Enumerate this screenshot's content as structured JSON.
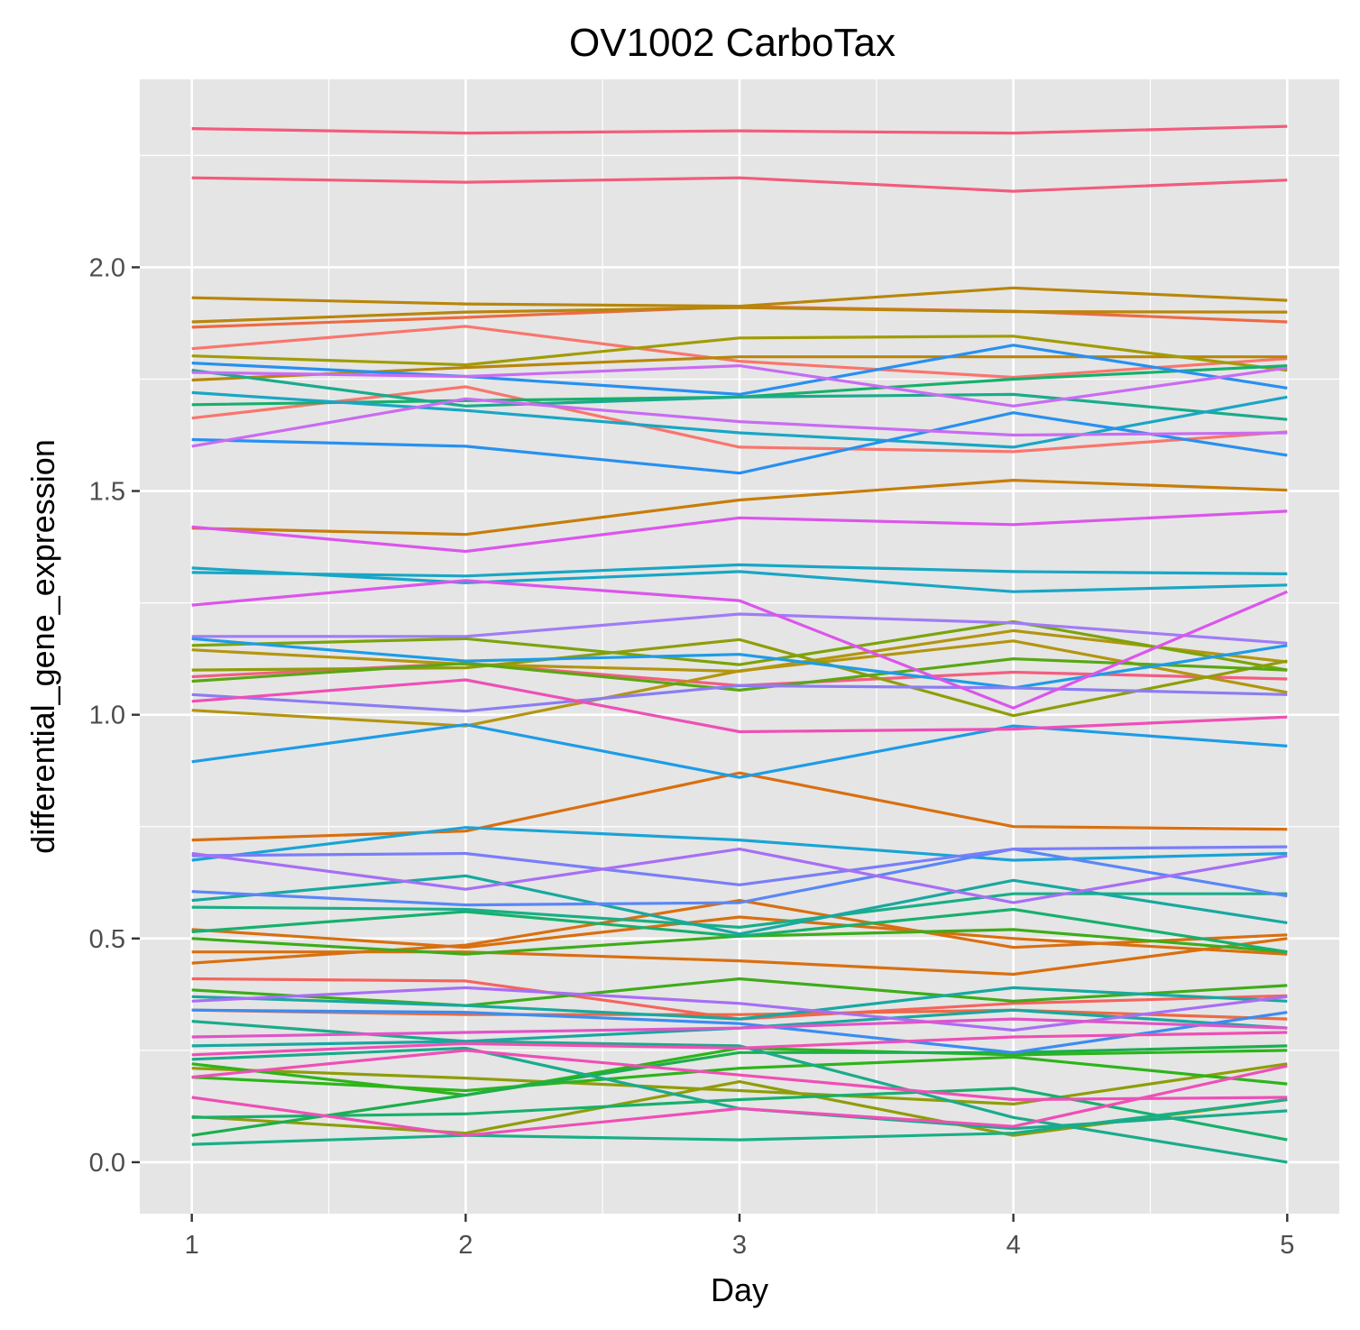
{
  "chart_data": {
    "type": "line",
    "title": "OV1002 CarboTax",
    "xlabel": "Day",
    "ylabel": "differential_gene_expression",
    "x": [
      1,
      2,
      3,
      4,
      5
    ],
    "xticks": [
      "1",
      "2",
      "3",
      "4",
      "5"
    ],
    "yticks": [
      "0.0",
      "0.5",
      "1.0",
      "1.5",
      "2.0"
    ],
    "xlim": [
      0.81,
      5.19
    ],
    "ylim": [
      -0.115,
      2.42
    ],
    "grid": true,
    "legend": "none",
    "background": "#e5e5e5",
    "series": [
      {
        "color": "#f8766d",
        "values": [
          1.818,
          1.868,
          1.79,
          1.754,
          1.796
        ]
      },
      {
        "color": "#f8766d",
        "values": [
          1.663,
          1.733,
          1.598,
          1.588,
          1.632
        ]
      },
      {
        "color": "#f5645d",
        "values": [
          0.41,
          0.405,
          0.32,
          0.355,
          0.372
        ]
      },
      {
        "color": "#f25c7c",
        "values": [
          2.31,
          2.3,
          2.305,
          2.3,
          2.315
        ]
      },
      {
        "color": "#f25c7c",
        "values": [
          2.2,
          2.19,
          2.2,
          2.17,
          2.195
        ]
      },
      {
        "color": "#f35e80",
        "values": [
          1.085,
          1.115,
          1.065,
          1.095,
          1.08
        ]
      },
      {
        "color": "#ed6a43",
        "values": [
          1.866,
          1.888,
          1.912,
          1.902,
          1.878
        ]
      },
      {
        "color": "#ed6a43",
        "values": [
          0.34,
          0.33,
          0.33,
          0.34,
          0.32
        ]
      },
      {
        "color": "#d96f10",
        "values": [
          0.72,
          0.74,
          0.87,
          0.75,
          0.744
        ]
      },
      {
        "color": "#d96f10",
        "values": [
          0.47,
          0.47,
          0.45,
          0.42,
          0.5
        ]
      },
      {
        "color": "#d96f10",
        "values": [
          0.445,
          0.485,
          0.585,
          0.48,
          0.508
        ]
      },
      {
        "color": "#d96f10",
        "values": [
          0.52,
          0.48,
          0.548,
          0.5,
          0.465
        ]
      },
      {
        "color": "#c77d0a",
        "values": [
          1.417,
          1.403,
          1.48,
          1.524,
          1.502
        ]
      },
      {
        "color": "#b8860b",
        "values": [
          1.932,
          1.918,
          1.913,
          1.954,
          1.926
        ]
      },
      {
        "color": "#b8860b",
        "values": [
          1.878,
          1.9,
          1.91,
          1.901,
          1.9
        ]
      },
      {
        "color": "#b8860b",
        "values": [
          1.748,
          1.776,
          1.8,
          1.8,
          1.8
        ]
      },
      {
        "color": "#b39510",
        "values": [
          1.01,
          0.975,
          1.098,
          1.165,
          1.05
        ]
      },
      {
        "color": "#b39510",
        "values": [
          1.145,
          1.113,
          1.097,
          1.188,
          1.118
        ]
      },
      {
        "color": "#a19c05",
        "values": [
          1.802,
          1.782,
          1.842,
          1.846,
          1.77
        ]
      },
      {
        "color": "#8f9d09",
        "values": [
          1.1,
          1.105,
          1.168,
          0.998,
          1.12
        ]
      },
      {
        "color": "#8f9d09",
        "values": [
          0.21,
          0.188,
          0.16,
          0.13,
          0.22
        ]
      },
      {
        "color": "#8f9d09",
        "values": [
          0.102,
          0.065,
          0.18,
          0.06,
          0.14
        ]
      },
      {
        "color": "#7ca30c",
        "values": [
          1.155,
          1.17,
          1.112,
          1.208,
          1.1
        ]
      },
      {
        "color": "#59a713",
        "values": [
          1.075,
          1.115,
          1.055,
          1.125,
          1.1
        ]
      },
      {
        "color": "#3dac1a",
        "values": [
          0.385,
          0.35,
          0.41,
          0.36,
          0.395
        ]
      },
      {
        "color": "#3dac1a",
        "values": [
          0.5,
          0.465,
          0.505,
          0.52,
          0.47
        ]
      },
      {
        "color": "#2db41a",
        "values": [
          0.22,
          0.15,
          0.255,
          0.24,
          0.25
        ]
      },
      {
        "color": "#2db41a",
        "values": [
          0.19,
          0.16,
          0.21,
          0.235,
          0.175
        ]
      },
      {
        "color": "#1cae4e",
        "values": [
          0.06,
          0.15,
          0.245,
          0.245,
          0.26
        ]
      },
      {
        "color": "#17b06d",
        "values": [
          1.693,
          1.702,
          1.71,
          1.75,
          1.78
        ]
      },
      {
        "color": "#17b06d",
        "values": [
          0.515,
          0.56,
          0.505,
          0.565,
          0.47
        ]
      },
      {
        "color": "#17b06d",
        "values": [
          0.1,
          0.108,
          0.14,
          0.165,
          0.05
        ]
      },
      {
        "color": "#19af86",
        "values": [
          0.04,
          0.06,
          0.05,
          0.065,
          0.14
        ]
      },
      {
        "color": "#19af86",
        "values": [
          0.57,
          0.565,
          0.525,
          0.6,
          0.6
        ]
      },
      {
        "color": "#1aab8b",
        "values": [
          1.77,
          1.69,
          1.71,
          1.716,
          1.66
        ]
      },
      {
        "color": "#1aab8b",
        "values": [
          0.315,
          0.27,
          0.26,
          0.1,
          0.0
        ]
      },
      {
        "color": "#1aab8b",
        "values": [
          0.23,
          0.255,
          0.12,
          0.075,
          0.115
        ]
      },
      {
        "color": "#18a8a0",
        "values": [
          0.585,
          0.64,
          0.51,
          0.63,
          0.535
        ]
      },
      {
        "color": "#18a8a0",
        "values": [
          0.37,
          0.35,
          0.32,
          0.39,
          0.36
        ]
      },
      {
        "color": "#18a8a0",
        "values": [
          0.26,
          0.27,
          0.3,
          0.34,
          0.3
        ]
      },
      {
        "color": "#19a6c5",
        "values": [
          1.72,
          1.68,
          1.63,
          1.598,
          1.71
        ]
      },
      {
        "color": "#19a6c5",
        "values": [
          1.328,
          1.295,
          1.32,
          1.275,
          1.29
        ]
      },
      {
        "color": "#19a6c5",
        "values": [
          1.318,
          1.31,
          1.335,
          1.32,
          1.315
        ]
      },
      {
        "color": "#1aa3d6",
        "values": [
          0.675,
          0.748,
          0.72,
          0.675,
          0.69
        ]
      },
      {
        "color": "#1d9ce6",
        "values": [
          0.895,
          0.978,
          0.86,
          0.975,
          0.93
        ]
      },
      {
        "color": "#1d9ce6",
        "values": [
          1.17,
          1.12,
          1.135,
          1.06,
          1.155
        ]
      },
      {
        "color": "#2790f0",
        "values": [
          1.786,
          1.756,
          1.716,
          1.826,
          1.73
        ]
      },
      {
        "color": "#2790f0",
        "values": [
          1.615,
          1.6,
          1.54,
          1.675,
          1.58
        ]
      },
      {
        "color": "#3b8cf2",
        "values": [
          0.34,
          0.335,
          0.31,
          0.245,
          0.335
        ]
      },
      {
        "color": "#5a86f7",
        "values": [
          0.605,
          0.575,
          0.58,
          0.7,
          0.595
        ]
      },
      {
        "color": "#7a7ef8",
        "values": [
          0.685,
          0.69,
          0.62,
          0.7,
          0.705
        ]
      },
      {
        "color": "#8b7df3",
        "values": [
          1.045,
          1.008,
          1.065,
          1.06,
          1.045
        ]
      },
      {
        "color": "#a07cf6",
        "values": [
          1.175,
          1.175,
          1.225,
          1.205,
          1.16
        ]
      },
      {
        "color": "#a86ef5",
        "values": [
          0.69,
          0.61,
          0.7,
          0.58,
          0.685
        ]
      },
      {
        "color": "#a86ef5",
        "values": [
          0.36,
          0.39,
          0.355,
          0.295,
          0.37
        ]
      },
      {
        "color": "#c96cf3",
        "values": [
          1.765,
          1.756,
          1.78,
          1.69,
          1.775
        ]
      },
      {
        "color": "#c96cf3",
        "values": [
          1.6,
          1.706,
          1.655,
          1.625,
          1.63
        ]
      },
      {
        "color": "#dc55ec",
        "values": [
          1.245,
          1.3,
          1.255,
          1.015,
          1.275
        ]
      },
      {
        "color": "#dc55ec",
        "values": [
          1.42,
          1.365,
          1.44,
          1.425,
          1.455
        ]
      },
      {
        "color": "#e054c8",
        "values": [
          0.28,
          0.29,
          0.3,
          0.32,
          0.3
        ]
      },
      {
        "color": "#ef4fb6",
        "values": [
          1.03,
          1.078,
          0.962,
          0.968,
          0.995
        ]
      },
      {
        "color": "#ef4fb6",
        "values": [
          0.24,
          0.265,
          0.255,
          0.28,
          0.29
        ]
      },
      {
        "color": "#ef4fb6",
        "values": [
          0.19,
          0.25,
          0.195,
          0.14,
          0.145
        ]
      },
      {
        "color": "#ef4fb6",
        "values": [
          0.145,
          0.06,
          0.12,
          0.08,
          0.215
        ]
      }
    ]
  }
}
